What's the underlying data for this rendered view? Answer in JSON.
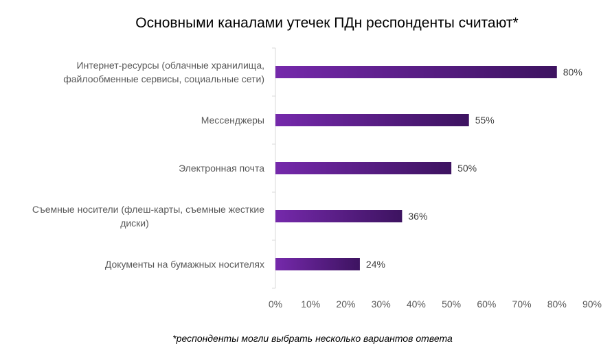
{
  "chart_data": {
    "type": "bar",
    "orientation": "horizontal",
    "title": "Основными каналами утечек ПДн респонденты считают*",
    "categories": [
      [
        "Интернет-ресурсы (облачные хранилища,",
        "файлообменные сервисы, социальные сети)"
      ],
      [
        "Мессенджеры"
      ],
      [
        "Электронная почта"
      ],
      [
        "Съемные носители (флеш-карты, съемные жесткие",
        "диски)"
      ],
      [
        "Документы на бумажных носителях"
      ]
    ],
    "values": [
      80,
      55,
      50,
      36,
      24
    ],
    "data_labels": [
      "80%",
      "55%",
      "50%",
      "36%",
      "24%"
    ],
    "xlim": [
      0,
      90
    ],
    "ticks": [
      "0%",
      "10%",
      "20%",
      "30%",
      "40%",
      "50%",
      "60%",
      "70%",
      "80%",
      "90%"
    ],
    "grid": false,
    "colors": {
      "bar_start": "#7529ab",
      "bar_end": "#3d1360"
    },
    "footnote": "*респонденты могли выбрать несколько вариантов ответа"
  }
}
